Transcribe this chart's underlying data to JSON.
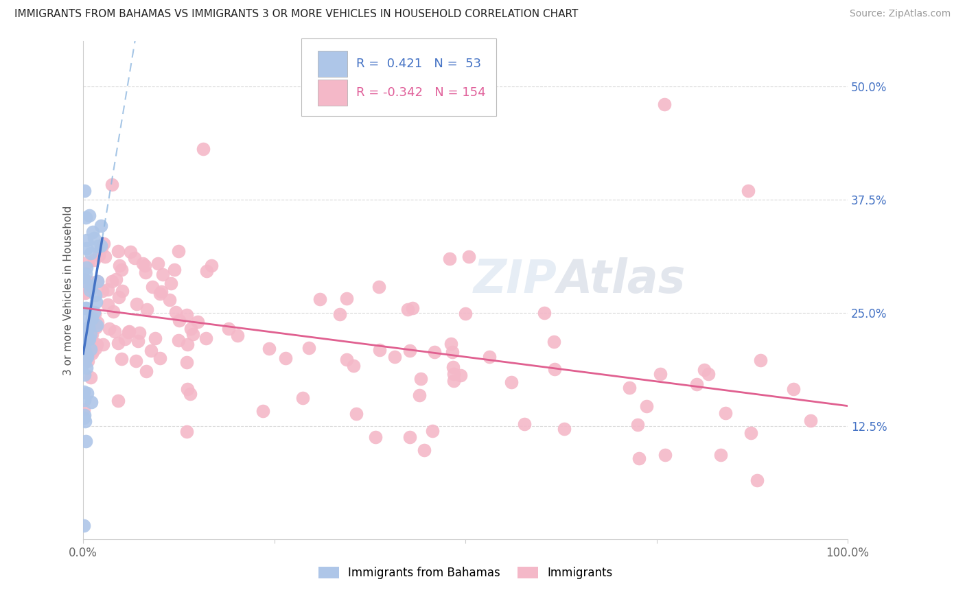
{
  "title": "IMMIGRANTS FROM BAHAMAS VS IMMIGRANTS 3 OR MORE VEHICLES IN HOUSEHOLD CORRELATION CHART",
  "source": "Source: ZipAtlas.com",
  "ylabel": "3 or more Vehicles in Household",
  "ytick_labels": [
    "12.5%",
    "25.0%",
    "37.5%",
    "50.0%"
  ],
  "ytick_values": [
    0.125,
    0.25,
    0.375,
    0.5
  ],
  "legend_label1": "Immigrants from Bahamas",
  "legend_label2": "Immigrants",
  "r1": 0.421,
  "n1": 53,
  "r2": -0.342,
  "n2": 154,
  "color_blue": "#aec6e8",
  "color_pink": "#f4b8c8",
  "color_blue_text": "#4472c4",
  "color_pink_text": "#e0609a",
  "color_line_blue": "#4472c4",
  "color_line_pink": "#e06090",
  "color_dashed": "#90b8e0",
  "watermark": "ZIPAtlas",
  "background": "#ffffff",
  "xlim": [
    0.0,
    1.0
  ],
  "ylim": [
    0.0,
    0.55
  ],
  "blue_intercept": 0.195,
  "blue_slope": 5.0,
  "pink_intercept": 0.265,
  "pink_slope": -0.135
}
